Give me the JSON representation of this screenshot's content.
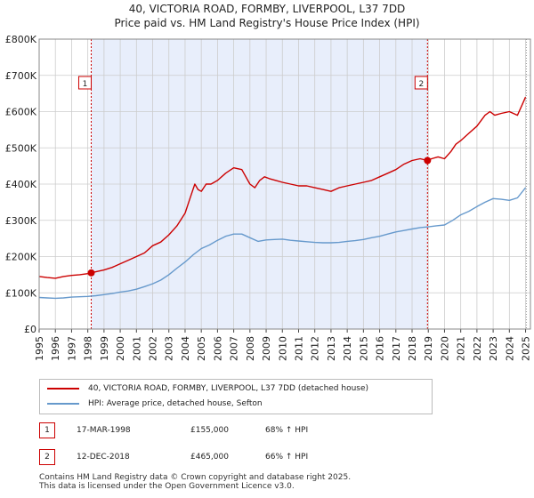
{
  "chart_data": {
    "type": "line",
    "title": "40, VICTORIA ROAD, FORMBY, LIVERPOOL, L37 7DD",
    "subtitle": "Price paid vs. HM Land Registry's House Price Index (HPI)",
    "xlabel": "",
    "ylabel": "",
    "xlim": [
      1995,
      2025.3
    ],
    "ylim": [
      0,
      800000
    ],
    "grid": true,
    "x_ticks": [
      "1995",
      "1996",
      "1997",
      "1998",
      "1999",
      "2000",
      "2001",
      "2002",
      "2003",
      "2004",
      "2005",
      "2006",
      "2007",
      "2008",
      "2009",
      "2010",
      "2011",
      "2012",
      "2013",
      "2014",
      "2015",
      "2016",
      "2017",
      "2018",
      "2019",
      "2020",
      "2021",
      "2022",
      "2023",
      "2024",
      "2025"
    ],
    "y_ticks": [
      {
        "value": 0,
        "label": "£0"
      },
      {
        "value": 100000,
        "label": "£100K"
      },
      {
        "value": 200000,
        "label": "£200K"
      },
      {
        "value": 300000,
        "label": "£300K"
      },
      {
        "value": 400000,
        "label": "£400K"
      },
      {
        "value": 500000,
        "label": "£500K"
      },
      {
        "value": 600000,
        "label": "£600K"
      },
      {
        "value": 700000,
        "label": "£700K"
      },
      {
        "value": 800000,
        "label": "£800K"
      }
    ],
    "ownership_shade": {
      "from": 1998.21,
      "to": 2018.95
    },
    "series": [
      {
        "name": "40, VICTORIA ROAD, FORMBY, LIVERPOOL, L37 7DD (detached house)",
        "color": "#cc0000",
        "x": [
          1995.0,
          1995.5,
          1996.0,
          1996.5,
          1997.0,
          1997.5,
          1998.0,
          1998.21,
          1998.5,
          1999.0,
          1999.5,
          2000.0,
          2000.5,
          2001.0,
          2001.5,
          2002.0,
          2002.5,
          2003.0,
          2003.5,
          2004.0,
          2004.3,
          2004.6,
          2004.8,
          2005.0,
          2005.3,
          2005.6,
          2006.0,
          2006.5,
          2007.0,
          2007.5,
          2008.0,
          2008.3,
          2008.6,
          2008.9,
          2009.2,
          2009.6,
          2010.0,
          2010.5,
          2011.0,
          2011.5,
          2012.0,
          2012.5,
          2013.0,
          2013.5,
          2014.0,
          2014.5,
          2015.0,
          2015.5,
          2016.0,
          2016.5,
          2017.0,
          2017.5,
          2018.0,
          2018.5,
          2018.95,
          2019.2,
          2019.6,
          2020.0,
          2020.4,
          2020.7,
          2021.0,
          2021.5,
          2022.0,
          2022.5,
          2022.8,
          2023.1,
          2023.5,
          2024.0,
          2024.5,
          2024.8,
          2025.0
        ],
        "values": [
          145000,
          142000,
          140000,
          145000,
          148000,
          150000,
          153000,
          155000,
          158000,
          163000,
          170000,
          180000,
          190000,
          200000,
          210000,
          230000,
          240000,
          260000,
          285000,
          320000,
          360000,
          400000,
          385000,
          380000,
          400000,
          400000,
          410000,
          430000,
          445000,
          440000,
          400000,
          390000,
          410000,
          420000,
          415000,
          410000,
          405000,
          400000,
          395000,
          395000,
          390000,
          385000,
          380000,
          390000,
          395000,
          400000,
          405000,
          410000,
          420000,
          430000,
          440000,
          455000,
          465000,
          470000,
          465000,
          470000,
          475000,
          470000,
          490000,
          510000,
          520000,
          540000,
          560000,
          590000,
          600000,
          590000,
          595000,
          600000,
          590000,
          620000,
          640000
        ]
      },
      {
        "name": "HPI: Average price, detached house, Sefton",
        "color": "#6699cc",
        "x": [
          1995.0,
          1995.5,
          1996.0,
          1996.5,
          1997.0,
          1997.5,
          1998.0,
          1998.5,
          1999.0,
          1999.5,
          2000.0,
          2000.5,
          2001.0,
          2001.5,
          2002.0,
          2002.5,
          2003.0,
          2003.5,
          2004.0,
          2004.5,
          2005.0,
          2005.5,
          2006.0,
          2006.5,
          2007.0,
          2007.5,
          2008.0,
          2008.5,
          2009.0,
          2009.5,
          2010.0,
          2010.5,
          2011.0,
          2011.5,
          2012.0,
          2012.5,
          2013.0,
          2013.5,
          2014.0,
          2014.5,
          2015.0,
          2015.5,
          2016.0,
          2016.5,
          2017.0,
          2017.5,
          2018.0,
          2018.5,
          2019.0,
          2019.5,
          2020.0,
          2020.5,
          2021.0,
          2021.5,
          2022.0,
          2022.5,
          2023.0,
          2023.5,
          2024.0,
          2024.5,
          2025.0
        ],
        "values": [
          87000,
          86000,
          85000,
          86000,
          88000,
          89000,
          90000,
          92000,
          95000,
          98000,
          102000,
          105000,
          110000,
          117000,
          125000,
          135000,
          150000,
          168000,
          185000,
          205000,
          222000,
          232000,
          245000,
          256000,
          262000,
          262000,
          252000,
          242000,
          246000,
          247000,
          248000,
          245000,
          243000,
          241000,
          239000,
          238000,
          238000,
          239000,
          242000,
          244000,
          247000,
          252000,
          256000,
          262000,
          268000,
          272000,
          276000,
          280000,
          282000,
          285000,
          287000,
          300000,
          315000,
          325000,
          338000,
          350000,
          360000,
          358000,
          355000,
          362000,
          390000
        ]
      }
    ],
    "markers": [
      {
        "label": "1",
        "x": 1998.21,
        "value": 155000
      },
      {
        "label": "2",
        "x": 2018.95,
        "value": 465000
      }
    ]
  },
  "legend": {
    "property_label": "40, VICTORIA ROAD, FORMBY, LIVERPOOL, L37 7DD (detached house)",
    "hpi_label": "HPI: Average price, detached house, Sefton"
  },
  "transactions": [
    {
      "num": "1",
      "date": "17-MAR-1998",
      "price": "£155,000",
      "hpi": "68% ↑ HPI"
    },
    {
      "num": "2",
      "date": "12-DEC-2018",
      "price": "£465,000",
      "hpi": "66% ↑ HPI"
    }
  ],
  "footer": {
    "line1": "Contains HM Land Registry data © Crown copyright and database right 2025.",
    "line2": "This data is licensed under the Open Government Licence v3.0."
  },
  "colors": {
    "property": "#cc0000",
    "hpi": "#6699cc",
    "shade": "#e8eefb",
    "grid": "#cccccc"
  }
}
